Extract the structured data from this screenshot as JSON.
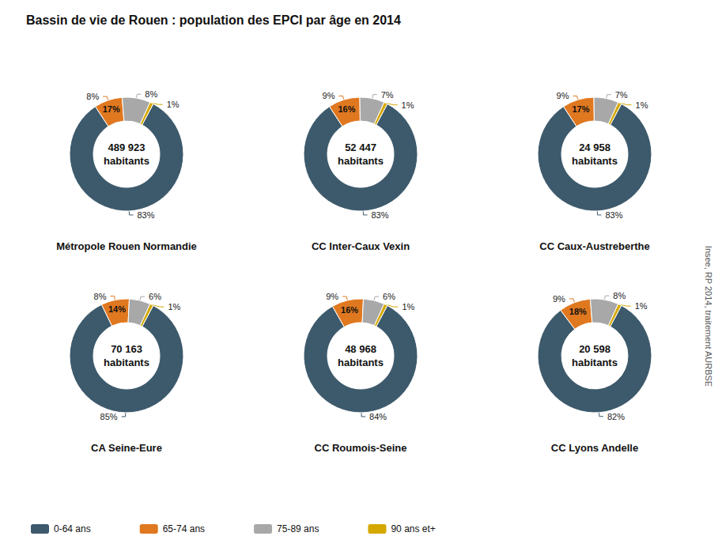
{
  "title": "Bassin de vie de Rouen : population des EPCI par âge en 2014",
  "annotations": [
    "Insee, RP 2014, traitement AURBSE"
  ],
  "legend": "bottom",
  "chart_data": [
    {
      "type": "pie",
      "title": "Métropole Rouen Normandie",
      "categories": [
        "0-64 ans",
        "65-74 ans",
        "75-89 ans",
        "90 ans et+"
      ],
      "values": [
        83,
        8,
        8,
        1
      ],
      "value_labels": [
        "83%",
        "8%",
        "8%",
        "1%"
      ],
      "colors": [
        "#3d5a6c",
        "#e07820",
        "#a8a8a8",
        "#d4a800"
      ],
      "data_labels": true,
      "annotations": [
        {
          "text": "489 923\nhabitants"
        },
        {
          "text": "17%",
          "category": "65-74 ans"
        }
      ]
    },
    {
      "type": "pie",
      "title": "CC Inter-Caux Vexin",
      "categories": [
        "0-64 ans",
        "65-74 ans",
        "75-89 ans",
        "90 ans et+"
      ],
      "values": [
        83,
        9,
        7,
        1
      ],
      "value_labels": [
        "83%",
        "9%",
        "7%",
        "1%"
      ],
      "colors": [
        "#3d5a6c",
        "#e07820",
        "#a8a8a8",
        "#d4a800"
      ],
      "data_labels": true,
      "annotations": [
        {
          "text": "52 447\nhabitants"
        },
        {
          "text": "16%",
          "category": "65-74 ans"
        }
      ]
    },
    {
      "type": "pie",
      "title": "CC Caux-Austreberthe",
      "categories": [
        "0-64 ans",
        "65-74 ans",
        "75-89 ans",
        "90 ans et+"
      ],
      "values": [
        83,
        9,
        7,
        1
      ],
      "value_labels": [
        "83%",
        "9%",
        "7%",
        "1%"
      ],
      "colors": [
        "#3d5a6c",
        "#e07820",
        "#a8a8a8",
        "#d4a800"
      ],
      "data_labels": true,
      "annotations": [
        {
          "text": "24 958\nhabitants"
        },
        {
          "text": "17%",
          "category": "65-74 ans"
        }
      ]
    },
    {
      "type": "pie",
      "title": "CA Seine-Eure",
      "categories": [
        "0-64 ans",
        "65-74 ans",
        "75-89 ans",
        "90 ans et+"
      ],
      "values": [
        85,
        8,
        6,
        1
      ],
      "value_labels": [
        "85%",
        "8%",
        "6%",
        "1%"
      ],
      "colors": [
        "#3d5a6c",
        "#e07820",
        "#a8a8a8",
        "#d4a800"
      ],
      "data_labels": true,
      "annotations": [
        {
          "text": "70 163\nhabitants"
        },
        {
          "text": "14%",
          "category": "65-74 ans"
        }
      ]
    },
    {
      "type": "pie",
      "title": "CC Roumois-Seine",
      "categories": [
        "0-64 ans",
        "65-74 ans",
        "75-89 ans",
        "90 ans et+"
      ],
      "values": [
        84,
        9,
        6,
        1
      ],
      "value_labels": [
        "84%",
        "9%",
        "6%",
        "1%"
      ],
      "colors": [
        "#3d5a6c",
        "#e07820",
        "#a8a8a8",
        "#d4a800"
      ],
      "data_labels": true,
      "annotations": [
        {
          "text": "48 968\nhabitants"
        },
        {
          "text": "16%",
          "category": "65-74 ans"
        }
      ]
    },
    {
      "type": "pie",
      "title": "CC Lyons Andelle",
      "categories": [
        "0-64 ans",
        "65-74 ans",
        "75-89 ans",
        "90 ans et+"
      ],
      "values": [
        82,
        9,
        8,
        1
      ],
      "value_labels": [
        "82%",
        "9%",
        "8%",
        "1%"
      ],
      "colors": [
        "#3d5a6c",
        "#e07820",
        "#a8a8a8",
        "#d4a800"
      ],
      "data_labels": true,
      "annotations": [
        {
          "text": "20 598\nhabitants"
        },
        {
          "text": "18%",
          "category": "65-74 ans"
        }
      ]
    }
  ]
}
